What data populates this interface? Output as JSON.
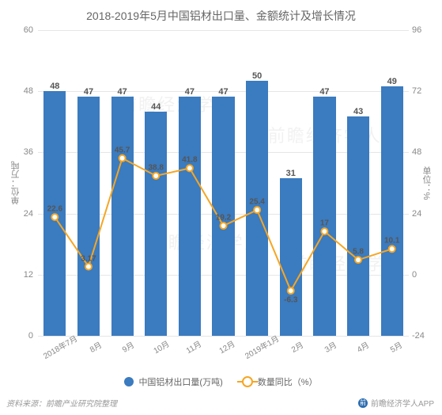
{
  "chart": {
    "type": "bar+line",
    "title": "2018-2019年5月中国铝材出口量、金额统计及增长情况",
    "background_color": "#ffffff",
    "grid_color": "#e6e6e6",
    "categories": [
      "2018年7月",
      "8月",
      "9月",
      "10月",
      "11月",
      "12月",
      "2019年1月",
      "2月",
      "3月",
      "4月",
      "5月"
    ],
    "bar_series": {
      "name": "中国铝材出口量(万吨)",
      "color": "#3b7bbf",
      "values": [
        48,
        47,
        47,
        44,
        47,
        47,
        50,
        31,
        47,
        43,
        49
      ],
      "display_labels": [
        "48",
        "47",
        "47",
        "44",
        "47",
        "47",
        "50",
        "31",
        "47",
        "43",
        "49"
      ]
    },
    "line_series": {
      "name": "数量同比（%）",
      "color": "#f6a623",
      "marker_fill": "#ffffff",
      "values": [
        22.6,
        3.17,
        45.7,
        38.8,
        41.8,
        19.2,
        25.4,
        -6.3,
        17,
        5.8,
        10.1
      ],
      "display_labels": [
        "22.6",
        "3.17",
        "45.7",
        "38.8",
        "41.8",
        "19.2",
        "25.4",
        "-6.3",
        "17",
        "5.8",
        "10.1"
      ]
    },
    "y_axis_left": {
      "label": "单位：万吨",
      "min": 0,
      "max": 60,
      "ticks": [
        0,
        12,
        24,
        36,
        48,
        60
      ]
    },
    "y_axis_right": {
      "label": "单位：%",
      "min": -24,
      "max": 96,
      "ticks": [
        -24,
        0,
        24,
        48,
        72,
        96
      ]
    },
    "legend": {
      "position": "bottom",
      "items": [
        {
          "label": "中国铝材出口量(万吨)",
          "type": "bar"
        },
        {
          "label": "数量同比（%）",
          "type": "line"
        }
      ]
    },
    "source_text": "资料来源：前瞻产业研究院整理",
    "brand_text": "前瞻经济学人APP",
    "watermark_text": "前瞻经济学人"
  }
}
